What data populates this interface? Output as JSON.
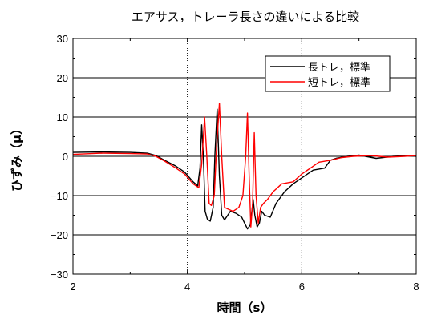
{
  "chart_data": {
    "type": "line",
    "title": "エアサス，トレーラ長さの違いによる比較",
    "xlabel": "時間（s）",
    "ylabel": "ひずみ（μ）",
    "xlim": [
      2,
      8
    ],
    "ylim": [
      -30,
      30
    ],
    "x_ticks": [
      "2",
      "4",
      "6",
      "8"
    ],
    "y_ticks": [
      "30",
      "20",
      "10",
      "0",
      "−10",
      "−20",
      "−30"
    ],
    "grid": "horizontal solid, vertical dotted",
    "legend_position": "top-right",
    "series": [
      {
        "name": "長トレ，標準",
        "color": "#000000",
        "points": [
          [
            2.0,
            1.0
          ],
          [
            2.5,
            1.1
          ],
          [
            3.0,
            1.0
          ],
          [
            3.3,
            0.8
          ],
          [
            3.45,
            0.2
          ],
          [
            3.6,
            -1.0
          ],
          [
            3.8,
            -2.5
          ],
          [
            3.95,
            -4.0
          ],
          [
            4.1,
            -6.5
          ],
          [
            4.18,
            -7.5
          ],
          [
            4.22,
            -3.0
          ],
          [
            4.25,
            8.0
          ],
          [
            4.28,
            0.0
          ],
          [
            4.31,
            -14.0
          ],
          [
            4.35,
            -16.0
          ],
          [
            4.4,
            -16.5
          ],
          [
            4.45,
            -13.0
          ],
          [
            4.48,
            0.0
          ],
          [
            4.52,
            12.0
          ],
          [
            4.56,
            -5.0
          ],
          [
            4.6,
            -15.0
          ],
          [
            4.65,
            -16.2
          ],
          [
            4.75,
            -14.0
          ],
          [
            4.85,
            -14.5
          ],
          [
            4.95,
            -15.5
          ],
          [
            5.0,
            -17.0
          ],
          [
            5.05,
            -18.5
          ],
          [
            5.1,
            -17.5
          ],
          [
            5.15,
            -11.0
          ],
          [
            5.18,
            -15.0
          ],
          [
            5.22,
            -18.0
          ],
          [
            5.26,
            -17.0
          ],
          [
            5.3,
            -14.0
          ],
          [
            5.35,
            -15.0
          ],
          [
            5.45,
            -15.5
          ],
          [
            5.55,
            -12.0
          ],
          [
            5.7,
            -9.0
          ],
          [
            5.85,
            -7.0
          ],
          [
            6.0,
            -5.5
          ],
          [
            6.2,
            -3.5
          ],
          [
            6.4,
            -3.0
          ],
          [
            6.5,
            -1.0
          ],
          [
            6.6,
            -0.5
          ],
          [
            6.8,
            0.0
          ],
          [
            7.0,
            0.3
          ],
          [
            7.3,
            -0.5
          ],
          [
            7.6,
            0.0
          ],
          [
            7.9,
            0.2
          ],
          [
            8.0,
            0.0
          ]
        ]
      },
      {
        "name": "短トレ，標準",
        "color": "#ff0000",
        "points": [
          [
            2.0,
            0.5
          ],
          [
            2.5,
            0.8
          ],
          [
            3.0,
            0.7
          ],
          [
            3.3,
            0.6
          ],
          [
            3.45,
            0.0
          ],
          [
            3.6,
            -1.2
          ],
          [
            3.8,
            -3.0
          ],
          [
            3.95,
            -4.5
          ],
          [
            4.1,
            -7.0
          ],
          [
            4.2,
            -8.0
          ],
          [
            4.25,
            -2.0
          ],
          [
            4.3,
            10.0
          ],
          [
            4.34,
            0.0
          ],
          [
            4.38,
            -12.0
          ],
          [
            4.42,
            -12.5
          ],
          [
            4.47,
            -10.0
          ],
          [
            4.51,
            2.0
          ],
          [
            4.56,
            13.5
          ],
          [
            4.6,
            0.0
          ],
          [
            4.65,
            -13.0
          ],
          [
            4.72,
            -13.5
          ],
          [
            4.8,
            -14.0
          ],
          [
            4.9,
            -13.0
          ],
          [
            4.97,
            -10.0
          ],
          [
            5.02,
            0.0
          ],
          [
            5.05,
            11.0
          ],
          [
            5.08,
            -5.0
          ],
          [
            5.11,
            -18.0
          ],
          [
            5.14,
            -12.0
          ],
          [
            5.17,
            6.0
          ],
          [
            5.2,
            -10.0
          ],
          [
            5.24,
            -17.0
          ],
          [
            5.28,
            -13.0
          ],
          [
            5.33,
            -12.0
          ],
          [
            5.4,
            -11.0
          ],
          [
            5.5,
            -9.0
          ],
          [
            5.65,
            -7.0
          ],
          [
            5.85,
            -6.5
          ],
          [
            6.0,
            -4.5
          ],
          [
            6.2,
            -2.5
          ],
          [
            6.3,
            -1.5
          ],
          [
            6.5,
            -1.0
          ],
          [
            6.7,
            -0.3
          ],
          [
            6.9,
            0.0
          ],
          [
            7.2,
            0.2
          ],
          [
            7.5,
            -0.2
          ],
          [
            7.8,
            0.0
          ],
          [
            8.0,
            0.2
          ]
        ]
      }
    ]
  }
}
